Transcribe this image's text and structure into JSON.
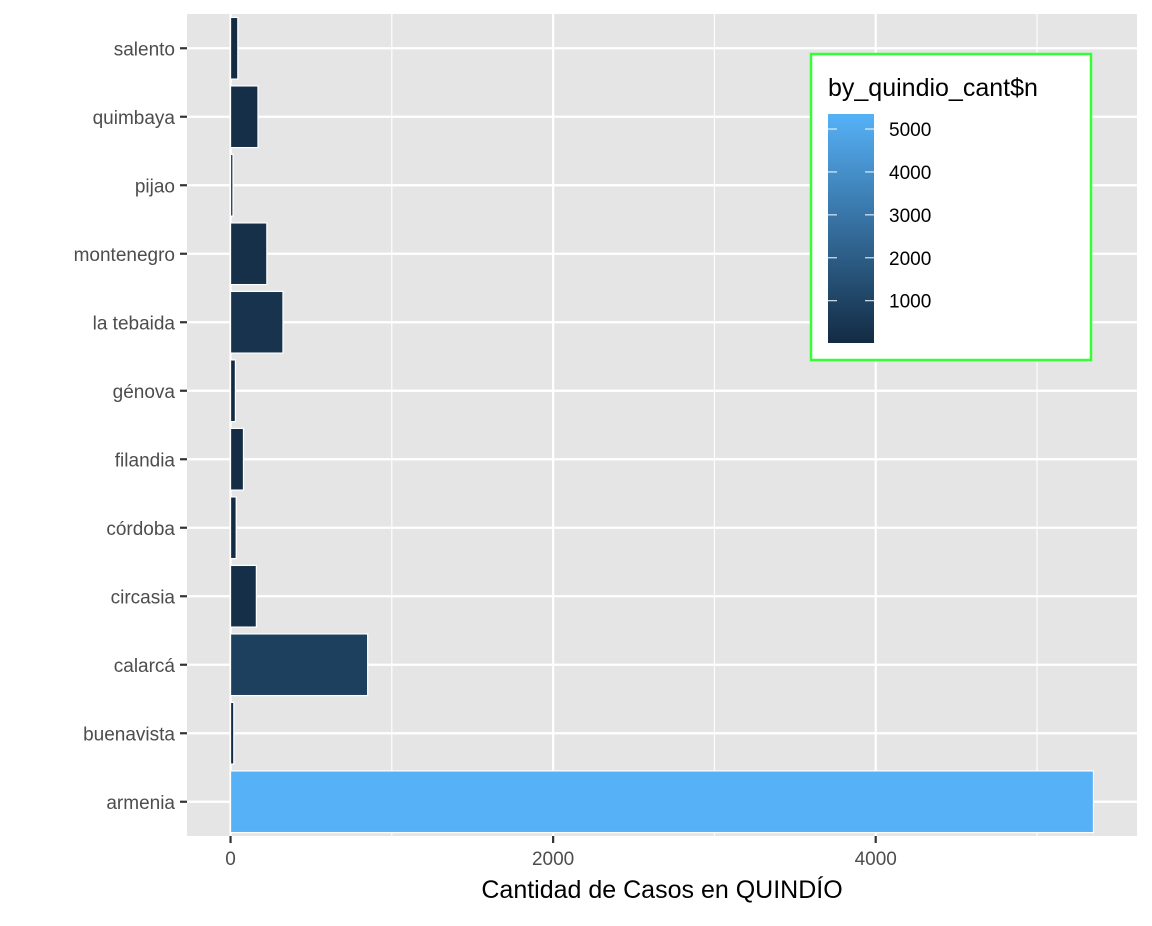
{
  "chart_data": {
    "type": "bar",
    "orientation": "horizontal",
    "title": "",
    "xlabel": "Cantidad de Casos en QUINDÍO",
    "ylabel": "",
    "categories": [
      "armenia",
      "buenavista",
      "calarcá",
      "circasia",
      "córdoba",
      "filandia",
      "génova",
      "la tebaida",
      "montenegro",
      "pijao",
      "quimbaya",
      "salento"
    ],
    "values": [
      5350,
      20,
      850,
      160,
      35,
      80,
      30,
      325,
      225,
      15,
      170,
      45
    ],
    "xlim": [
      -270,
      5620
    ],
    "x_ticks": [
      0,
      2000,
      4000
    ],
    "x_tick_labels": [
      "0",
      "2000",
      "4000"
    ],
    "grid": true,
    "fill_scale": {
      "low_color": "#132B43",
      "high_color": "#56B1F7",
      "min": 15,
      "max": 5350
    },
    "legend": {
      "title": "by_quindio_cant$n",
      "position": "top-right",
      "border_color": "#33ff33",
      "ticks": [
        1000,
        2000,
        3000,
        4000,
        5000
      ],
      "tick_labels": [
        "1000",
        "2000",
        "3000",
        "4000",
        "5000"
      ]
    }
  }
}
